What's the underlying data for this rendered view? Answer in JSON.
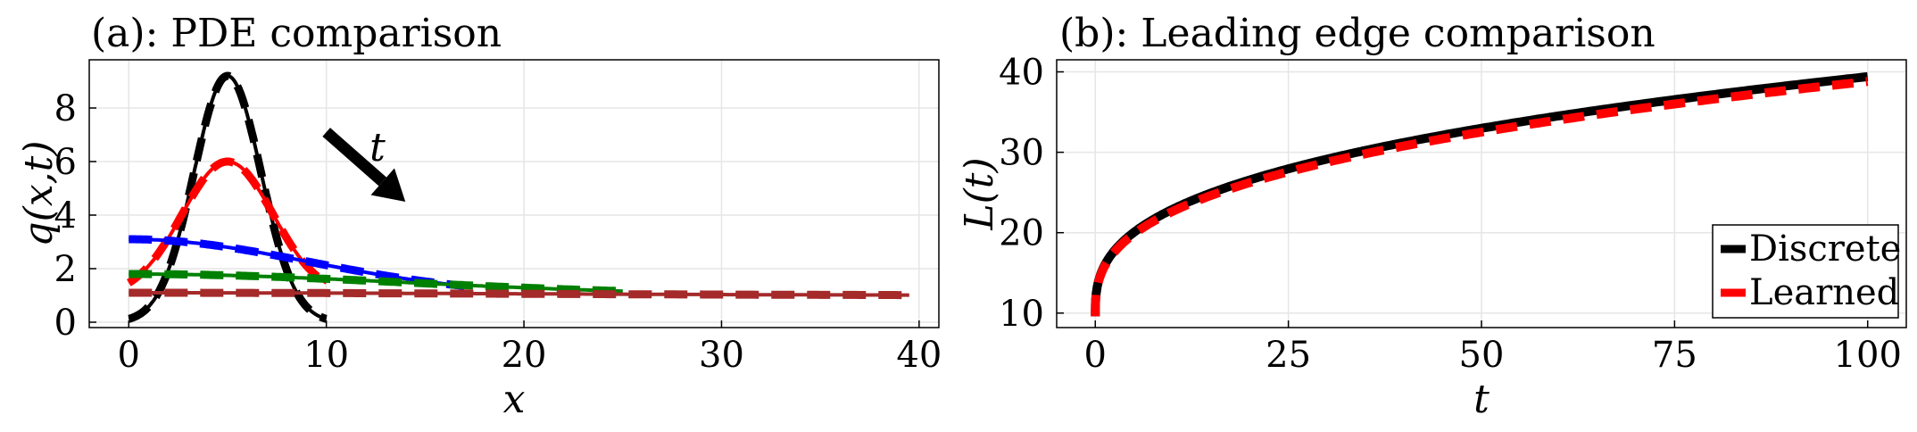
{
  "chart_data": [
    {
      "type": "line",
      "title": "(a): PDE comparison",
      "xlabel": "x",
      "ylabel": "q(x,t)",
      "xlim": [
        -2,
        41
      ],
      "ylim": [
        -0.2,
        9.8
      ],
      "xticks": [
        0,
        10,
        20,
        30,
        40
      ],
      "yticks": [
        0,
        2,
        4,
        6,
        8
      ],
      "grid": true,
      "annotation": {
        "text": "t",
        "arrow": {
          "from": [
            10,
            7.1
          ],
          "to": [
            14,
            4.5
          ]
        }
      },
      "series": [
        {
          "color": "#000000",
          "profile": "gaussian",
          "x": [
            0,
            10
          ],
          "peak": 9.2,
          "center": 5,
          "width": 1.7,
          "base": 0.0
        },
        {
          "color": "#ff0000",
          "profile": "gaussian",
          "x": [
            0,
            10
          ],
          "peak": 6.0,
          "center": 5,
          "width": 2.3,
          "base": 1.0
        },
        {
          "color": "#0000ff",
          "profile": "gaussian",
          "x": [
            0,
            17
          ],
          "peak": 3.1,
          "center": 0,
          "width": 9.0,
          "base": 1.0
        },
        {
          "color": "#008000",
          "profile": "gaussian",
          "x": [
            0,
            25
          ],
          "peak": 1.8,
          "center": 0,
          "width": 14.0,
          "base": 1.0
        },
        {
          "color": "#a52a2a",
          "profile": "gaussian",
          "x": [
            0,
            39.5
          ],
          "peak": 1.1,
          "center": 0,
          "width": 20.0,
          "base": 1.0
        }
      ]
    },
    {
      "type": "line",
      "title": "(b): Leading edge comparison",
      "xlabel": "t",
      "ylabel": "L(t)",
      "xlim": [
        -5,
        105
      ],
      "ylim": [
        8.2,
        41.5
      ],
      "xticks": [
        0,
        25,
        50,
        75,
        100
      ],
      "yticks": [
        10,
        20,
        30,
        40
      ],
      "grid": true,
      "legend": "bottom-right",
      "series": [
        {
          "name": "Discrete",
          "color": "#000000",
          "style": "solid",
          "t_end": 100,
          "L_end": 39.4,
          "L0": 9.6
        },
        {
          "name": "Learned",
          "color": "#ff0000",
          "style": "dashed",
          "t_end": 100,
          "L_end": 38.8,
          "L0": 9.6
        }
      ]
    }
  ]
}
